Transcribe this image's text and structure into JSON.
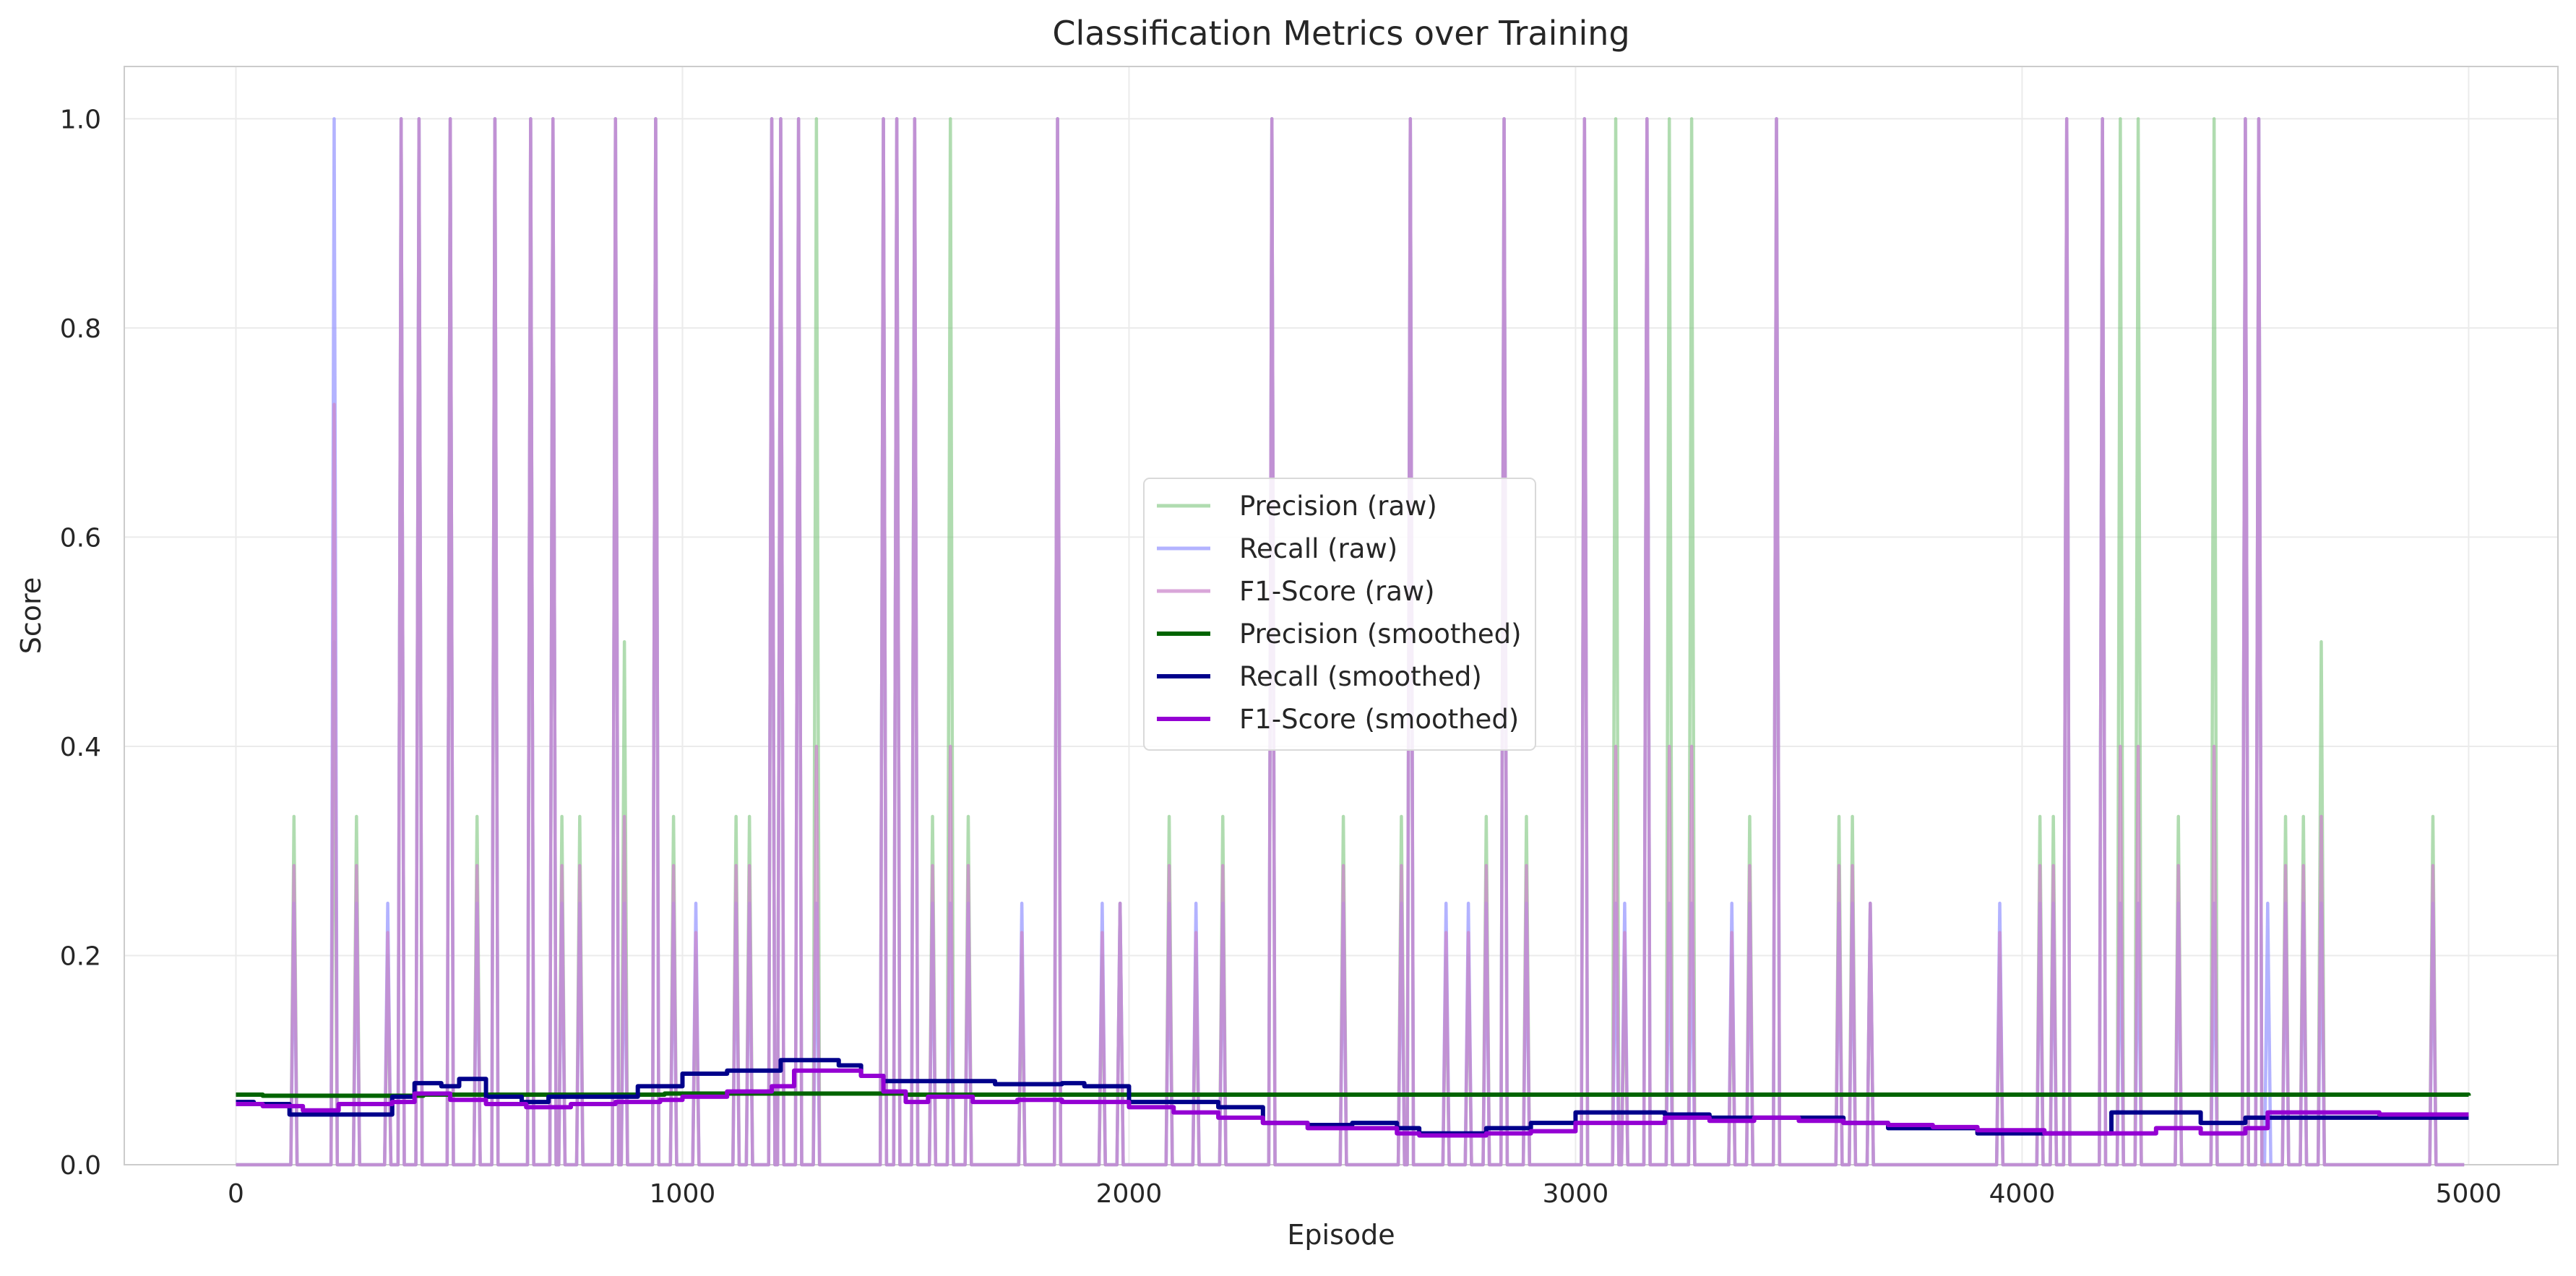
{
  "chart_data": {
    "type": "line",
    "title": "Classification Metrics over Training",
    "xlabel": "Episode",
    "ylabel": "Score",
    "xlim": [
      -250,
      5200
    ],
    "ylim": [
      0.0,
      1.05
    ],
    "x_ticks": [
      0,
      1000,
      2000,
      3000,
      4000,
      5000
    ],
    "y_ticks": [
      0.0,
      0.2,
      0.4,
      0.6,
      0.8,
      1.0
    ],
    "x_tick_labels": [
      "0",
      "1000",
      "2000",
      "3000",
      "4000",
      "5000"
    ],
    "y_tick_labels": [
      "0.0",
      "0.2",
      "0.4",
      "0.6",
      "0.8",
      "1.0"
    ],
    "grid": true,
    "legend_position": "center",
    "raw_spikes_note": "",
    "raw_series": [
      {
        "name": "Precision (raw)",
        "color": "#7cc47c",
        "spikes": [
          [
            130,
            0.333
          ],
          [
            220,
            0.5
          ],
          [
            270,
            0.333
          ],
          [
            340,
            0.2
          ],
          [
            370,
            1.0
          ],
          [
            410,
            1.0
          ],
          [
            480,
            1.0
          ],
          [
            540,
            0.333
          ],
          [
            580,
            1.0
          ],
          [
            660,
            1.0
          ],
          [
            710,
            1.0
          ],
          [
            730,
            0.333
          ],
          [
            770,
            0.333
          ],
          [
            850,
            1.0
          ],
          [
            870,
            0.5
          ],
          [
            940,
            1.0
          ],
          [
            980,
            0.333
          ],
          [
            1030,
            0.2
          ],
          [
            1120,
            0.333
          ],
          [
            1150,
            0.333
          ],
          [
            1200,
            1.0
          ],
          [
            1220,
            1.0
          ],
          [
            1260,
            1.0
          ],
          [
            1300,
            1.0
          ],
          [
            1450,
            1.0
          ],
          [
            1480,
            1.0
          ],
          [
            1520,
            1.0
          ],
          [
            1560,
            0.333
          ],
          [
            1600,
            1.0
          ],
          [
            1640,
            0.333
          ],
          [
            1760,
            0.2
          ],
          [
            1840,
            1.0
          ],
          [
            1940,
            0.2
          ],
          [
            1980,
            0.25
          ],
          [
            2090,
            0.333
          ],
          [
            2150,
            0.2
          ],
          [
            2210,
            0.333
          ],
          [
            2320,
            1.0
          ],
          [
            2480,
            0.333
          ],
          [
            2610,
            0.333
          ],
          [
            2630,
            1.0
          ],
          [
            2710,
            0.2
          ],
          [
            2760,
            0.2
          ],
          [
            2800,
            0.333
          ],
          [
            2840,
            1.0
          ],
          [
            2890,
            0.333
          ],
          [
            3020,
            1.0
          ],
          [
            3090,
            1.0
          ],
          [
            3110,
            0.2
          ],
          [
            3160,
            1.0
          ],
          [
            3210,
            1.0
          ],
          [
            3260,
            1.0
          ],
          [
            3350,
            0.2
          ],
          [
            3390,
            0.333
          ],
          [
            3450,
            1.0
          ],
          [
            3590,
            0.333
          ],
          [
            3620,
            0.333
          ],
          [
            3660,
            0.25
          ],
          [
            3950,
            0.2
          ],
          [
            4040,
            0.333
          ],
          [
            4070,
            0.333
          ],
          [
            4100,
            1.0
          ],
          [
            4180,
            1.0
          ],
          [
            4220,
            1.0
          ],
          [
            4260,
            1.0
          ],
          [
            4350,
            0.333
          ],
          [
            4430,
            1.0
          ],
          [
            4500,
            1.0
          ],
          [
            4530,
            1.0
          ],
          [
            4590,
            0.333
          ],
          [
            4630,
            0.333
          ],
          [
            4670,
            0.5
          ],
          [
            4920,
            0.333
          ]
        ]
      },
      {
        "name": "Recall (raw)",
        "color": "#9999ff",
        "spikes": [
          [
            130,
            0.25
          ],
          [
            220,
            1.0
          ],
          [
            270,
            0.25
          ],
          [
            340,
            0.25
          ],
          [
            370,
            1.0
          ],
          [
            410,
            1.0
          ],
          [
            480,
            1.0
          ],
          [
            540,
            0.25
          ],
          [
            580,
            1.0
          ],
          [
            660,
            1.0
          ],
          [
            710,
            1.0
          ],
          [
            730,
            0.25
          ],
          [
            770,
            0.25
          ],
          [
            850,
            1.0
          ],
          [
            870,
            0.25
          ],
          [
            940,
            1.0
          ],
          [
            980,
            0.25
          ],
          [
            1030,
            0.25
          ],
          [
            1120,
            0.25
          ],
          [
            1150,
            0.25
          ],
          [
            1200,
            1.0
          ],
          [
            1220,
            1.0
          ],
          [
            1260,
            1.0
          ],
          [
            1300,
            0.25
          ],
          [
            1450,
            1.0
          ],
          [
            1480,
            1.0
          ],
          [
            1520,
            1.0
          ],
          [
            1560,
            0.25
          ],
          [
            1600,
            0.25
          ],
          [
            1640,
            0.25
          ],
          [
            1760,
            0.25
          ],
          [
            1840,
            1.0
          ],
          [
            1940,
            0.25
          ],
          [
            1980,
            0.25
          ],
          [
            2090,
            0.25
          ],
          [
            2150,
            0.25
          ],
          [
            2210,
            0.25
          ],
          [
            2320,
            1.0
          ],
          [
            2480,
            0.25
          ],
          [
            2610,
            0.25
          ],
          [
            2630,
            1.0
          ],
          [
            2710,
            0.25
          ],
          [
            2760,
            0.25
          ],
          [
            2800,
            0.25
          ],
          [
            2840,
            1.0
          ],
          [
            2890,
            0.25
          ],
          [
            3020,
            1.0
          ],
          [
            3090,
            0.25
          ],
          [
            3110,
            0.25
          ],
          [
            3160,
            1.0
          ],
          [
            3210,
            0.25
          ],
          [
            3260,
            0.25
          ],
          [
            3350,
            0.25
          ],
          [
            3390,
            0.25
          ],
          [
            3450,
            1.0
          ],
          [
            3590,
            0.25
          ],
          [
            3620,
            0.25
          ],
          [
            3660,
            0.25
          ],
          [
            3950,
            0.25
          ],
          [
            4040,
            0.25
          ],
          [
            4070,
            0.25
          ],
          [
            4100,
            1.0
          ],
          [
            4180,
            1.0
          ],
          [
            4220,
            0.25
          ],
          [
            4260,
            0.25
          ],
          [
            4350,
            0.25
          ],
          [
            4430,
            0.25
          ],
          [
            4500,
            1.0
          ],
          [
            4530,
            1.0
          ],
          [
            4550,
            0.25
          ],
          [
            4590,
            0.25
          ],
          [
            4630,
            0.25
          ],
          [
            4670,
            0.25
          ],
          [
            4920,
            0.25
          ]
        ]
      },
      {
        "name": "F1-Score (raw)",
        "color": "#cc88cc",
        "spikes": [
          [
            130,
            0.286
          ],
          [
            220,
            0.727
          ],
          [
            270,
            0.286
          ],
          [
            340,
            0.222
          ],
          [
            370,
            1.0
          ],
          [
            410,
            1.0
          ],
          [
            480,
            1.0
          ],
          [
            540,
            0.286
          ],
          [
            580,
            1.0
          ],
          [
            660,
            1.0
          ],
          [
            710,
            1.0
          ],
          [
            730,
            0.286
          ],
          [
            770,
            0.286
          ],
          [
            850,
            1.0
          ],
          [
            870,
            0.333
          ],
          [
            940,
            1.0
          ],
          [
            980,
            0.286
          ],
          [
            1030,
            0.222
          ],
          [
            1120,
            0.286
          ],
          [
            1150,
            0.286
          ],
          [
            1200,
            1.0
          ],
          [
            1220,
            1.0
          ],
          [
            1260,
            1.0
          ],
          [
            1300,
            0.4
          ],
          [
            1450,
            1.0
          ],
          [
            1480,
            1.0
          ],
          [
            1520,
            1.0
          ],
          [
            1560,
            0.286
          ],
          [
            1600,
            0.4
          ],
          [
            1640,
            0.286
          ],
          [
            1760,
            0.222
          ],
          [
            1840,
            1.0
          ],
          [
            1940,
            0.222
          ],
          [
            1980,
            0.25
          ],
          [
            2090,
            0.286
          ],
          [
            2150,
            0.222
          ],
          [
            2210,
            0.286
          ],
          [
            2320,
            1.0
          ],
          [
            2480,
            0.286
          ],
          [
            2610,
            0.286
          ],
          [
            2630,
            1.0
          ],
          [
            2710,
            0.222
          ],
          [
            2760,
            0.222
          ],
          [
            2800,
            0.286
          ],
          [
            2840,
            1.0
          ],
          [
            2890,
            0.286
          ],
          [
            3020,
            1.0
          ],
          [
            3090,
            0.4
          ],
          [
            3110,
            0.222
          ],
          [
            3160,
            1.0
          ],
          [
            3210,
            0.4
          ],
          [
            3260,
            0.4
          ],
          [
            3350,
            0.222
          ],
          [
            3390,
            0.286
          ],
          [
            3450,
            1.0
          ],
          [
            3590,
            0.286
          ],
          [
            3620,
            0.286
          ],
          [
            3660,
            0.25
          ],
          [
            3950,
            0.222
          ],
          [
            4040,
            0.286
          ],
          [
            4070,
            0.286
          ],
          [
            4100,
            1.0
          ],
          [
            4180,
            1.0
          ],
          [
            4220,
            0.4
          ],
          [
            4260,
            0.4
          ],
          [
            4350,
            0.286
          ],
          [
            4430,
            0.4
          ],
          [
            4500,
            1.0
          ],
          [
            4530,
            1.0
          ],
          [
            4590,
            0.286
          ],
          [
            4630,
            0.286
          ],
          [
            4670,
            0.333
          ],
          [
            4920,
            0.286
          ]
        ]
      }
    ],
    "series": [
      {
        "name": "Precision (smoothed)",
        "color": "#006400",
        "x": [
          0,
          60,
          230,
          420,
          700,
          960,
          1250,
          1500,
          1700,
          1850,
          2000,
          2150,
          2250,
          2400,
          2600,
          2800,
          3000,
          3200,
          3400,
          3600,
          3800,
          4000,
          4200,
          4400,
          4600,
          4800,
          5000
        ],
        "y": [
          0.067,
          0.066,
          0.066,
          0.067,
          0.067,
          0.068,
          0.068,
          0.067,
          0.067,
          0.067,
          0.067,
          0.067,
          0.067,
          0.067,
          0.067,
          0.067,
          0.067,
          0.067,
          0.067,
          0.067,
          0.067,
          0.067,
          0.067,
          0.067,
          0.067,
          0.067,
          0.066
        ]
      },
      {
        "name": "Recall (smoothed)",
        "color": "#00008b",
        "x": [
          0,
          40,
          120,
          230,
          350,
          400,
          460,
          500,
          560,
          640,
          700,
          850,
          900,
          960,
          1000,
          1100,
          1200,
          1220,
          1300,
          1350,
          1400,
          1450,
          1500,
          1600,
          1700,
          1800,
          1850,
          1900,
          2000,
          2100,
          2200,
          2300,
          2400,
          2500,
          2600,
          2650,
          2700,
          2800,
          2900,
          3000,
          3100,
          3200,
          3300,
          3400,
          3500,
          3600,
          3700,
          3800,
          3900,
          4000,
          4100,
          4200,
          4300,
          4400,
          4500,
          4600,
          4700,
          4800,
          5000
        ],
        "y": [
          0.06,
          0.058,
          0.048,
          0.048,
          0.065,
          0.078,
          0.075,
          0.082,
          0.065,
          0.06,
          0.065,
          0.065,
          0.075,
          0.075,
          0.087,
          0.09,
          0.09,
          0.1,
          0.1,
          0.095,
          0.085,
          0.08,
          0.08,
          0.08,
          0.077,
          0.077,
          0.078,
          0.075,
          0.06,
          0.06,
          0.055,
          0.04,
          0.038,
          0.04,
          0.035,
          0.03,
          0.03,
          0.035,
          0.04,
          0.05,
          0.05,
          0.048,
          0.045,
          0.045,
          0.045,
          0.04,
          0.035,
          0.035,
          0.03,
          0.03,
          0.03,
          0.05,
          0.05,
          0.04,
          0.045,
          0.045,
          0.045,
          0.045,
          0.045
        ]
      },
      {
        "name": "F1-Score (smoothed)",
        "color": "#9400d3",
        "x": [
          0,
          60,
          150,
          230,
          350,
          400,
          480,
          560,
          650,
          750,
          850,
          950,
          1000,
          1100,
          1200,
          1250,
          1300,
          1400,
          1450,
          1500,
          1550,
          1650,
          1750,
          1850,
          2000,
          2100,
          2200,
          2300,
          2400,
          2600,
          2650,
          2800,
          2900,
          3000,
          3100,
          3200,
          3300,
          3400,
          3500,
          3600,
          3700,
          3800,
          3900,
          4000,
          4050,
          4200,
          4300,
          4400,
          4500,
          4550,
          4700,
          4800,
          5000
        ],
        "y": [
          0.058,
          0.056,
          0.052,
          0.058,
          0.06,
          0.068,
          0.062,
          0.058,
          0.055,
          0.058,
          0.06,
          0.062,
          0.065,
          0.07,
          0.075,
          0.09,
          0.09,
          0.085,
          0.07,
          0.06,
          0.065,
          0.06,
          0.062,
          0.06,
          0.055,
          0.05,
          0.045,
          0.04,
          0.035,
          0.03,
          0.028,
          0.03,
          0.032,
          0.04,
          0.04,
          0.045,
          0.042,
          0.045,
          0.042,
          0.04,
          0.038,
          0.036,
          0.033,
          0.033,
          0.03,
          0.03,
          0.035,
          0.03,
          0.035,
          0.05,
          0.05,
          0.048,
          0.048
        ]
      }
    ]
  }
}
